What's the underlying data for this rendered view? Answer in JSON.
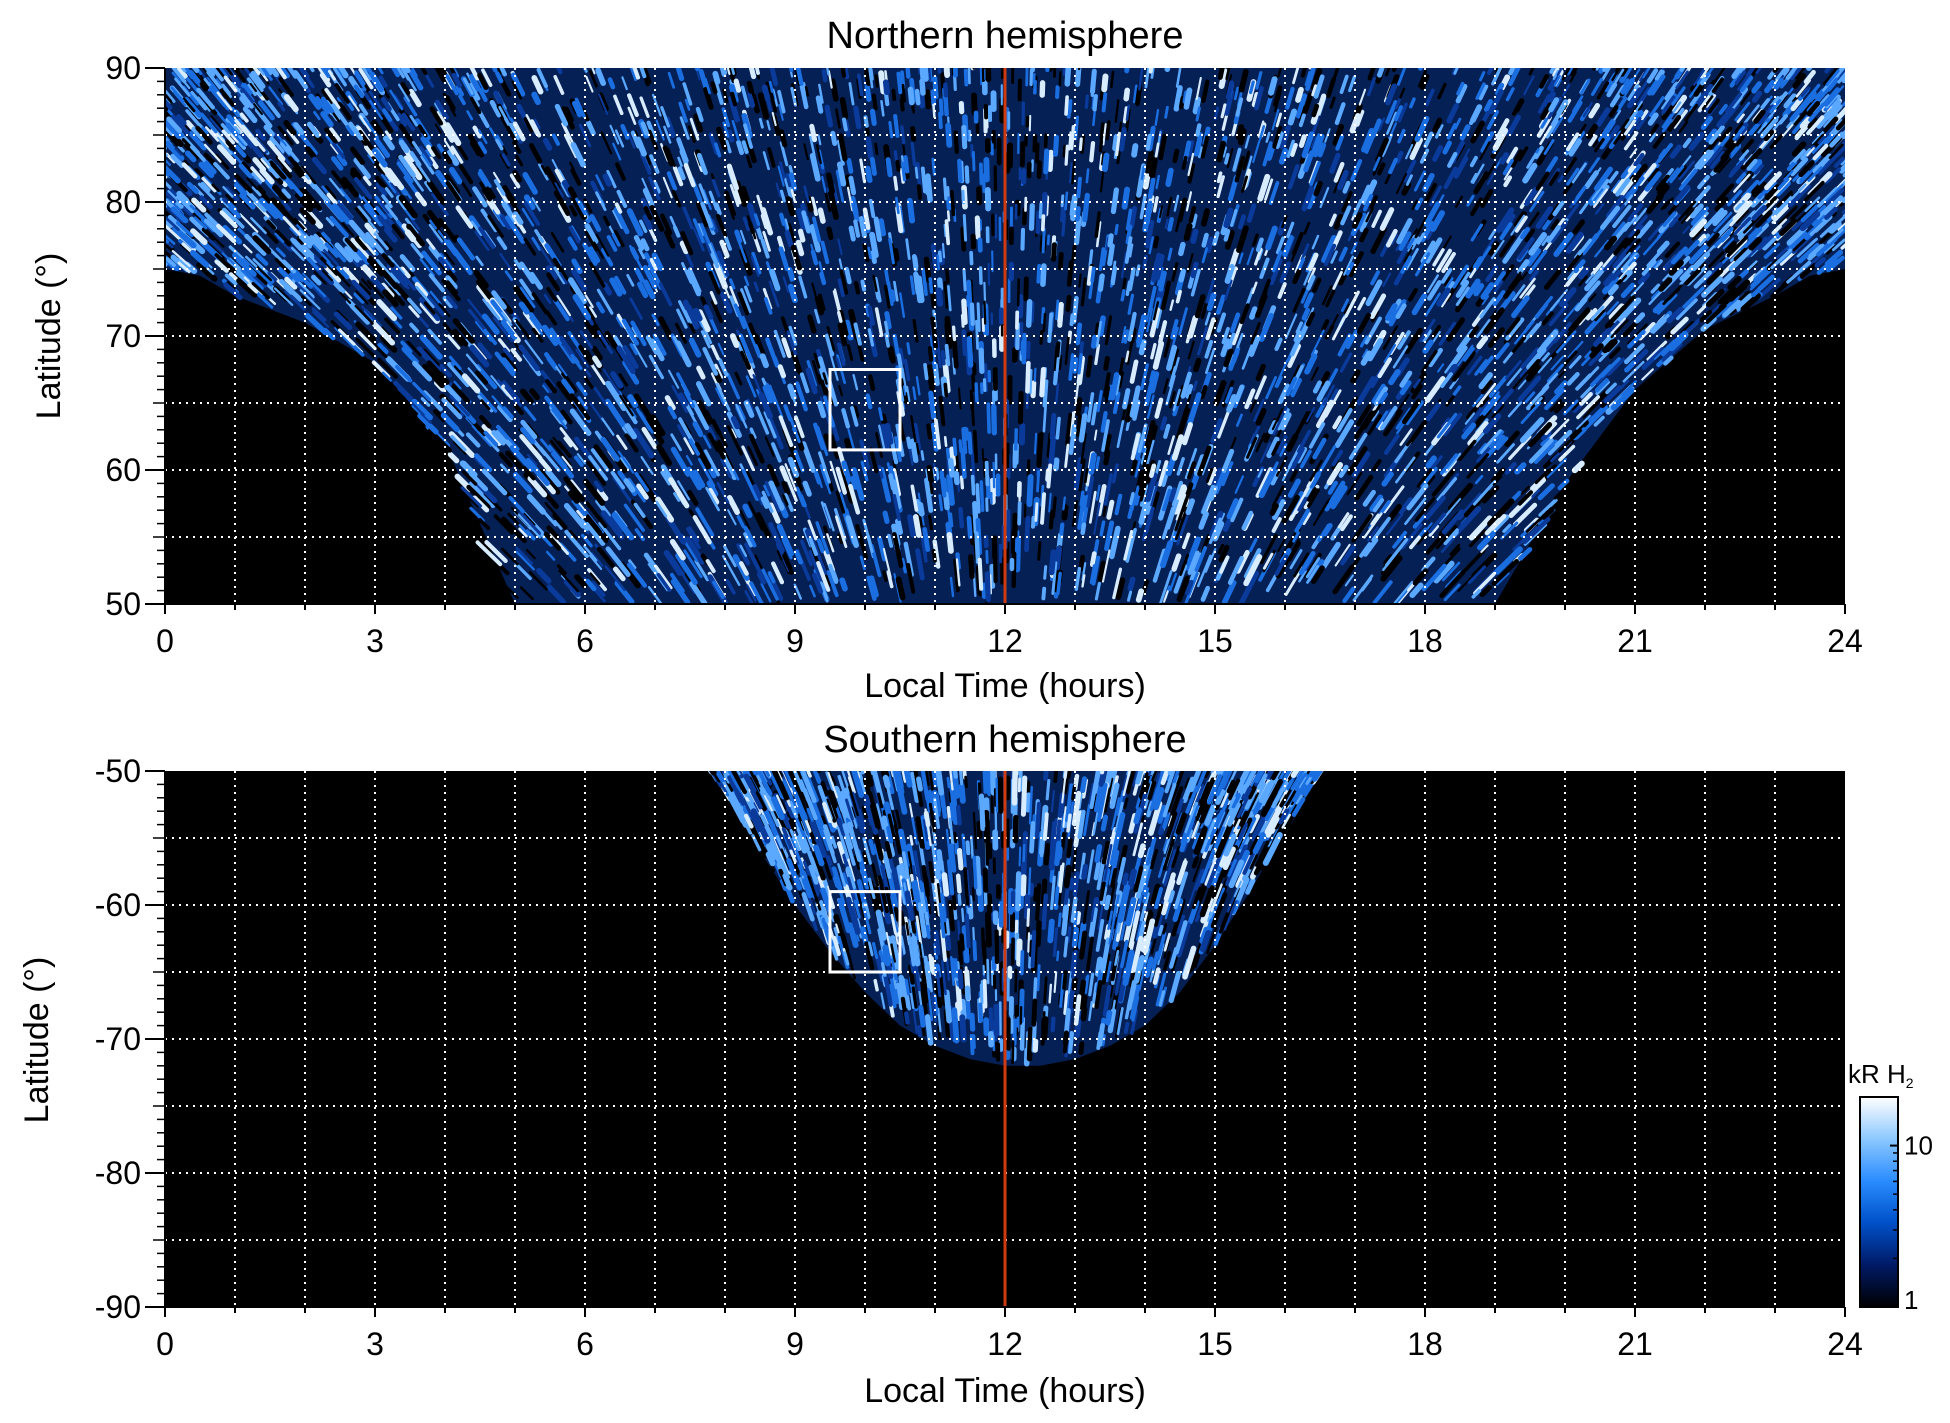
{
  "chart_data": [
    {
      "type": "heatmap",
      "title": "Northern hemisphere",
      "xlabel": "Local Time (hours)",
      "ylabel": "Latitude (°)",
      "xlim": [
        0,
        24
      ],
      "ylim": [
        50,
        90
      ],
      "xticks": [
        "0",
        "3",
        "6",
        "9",
        "12",
        "15",
        "18",
        "21",
        "24"
      ],
      "yticks": [
        "50",
        "60",
        "70",
        "80",
        "90"
      ],
      "grid": true,
      "noon_line_local_time": 12,
      "boundary": {
        "local_time": [
          0,
          0.5,
          1,
          2,
          3,
          4,
          5,
          6,
          7,
          8,
          9,
          10,
          11,
          12,
          13,
          14,
          15,
          16,
          17,
          18,
          19,
          20,
          21,
          22,
          23,
          23.5,
          24
        ],
        "min_latitude": [
          75,
          74.5,
          73,
          71,
          68,
          62,
          50,
          50,
          50,
          50,
          50,
          50,
          50,
          50,
          50,
          50,
          50,
          50,
          50,
          50,
          50,
          59,
          66,
          70.5,
          73,
          74.5,
          75
        ]
      },
      "highlight_box": {
        "local_time": [
          9.5,
          10.5
        ],
        "latitude": [
          61.5,
          67.5
        ]
      }
    },
    {
      "type": "heatmap",
      "title": "Southern hemisphere",
      "xlabel": "Local Time (hours)",
      "ylabel": "Latitude (°)",
      "xlim": [
        0,
        24
      ],
      "ylim": [
        -90,
        -50
      ],
      "xticks": [
        "0",
        "3",
        "6",
        "9",
        "12",
        "15",
        "18",
        "21",
        "24"
      ],
      "yticks": [
        "-50",
        "-60",
        "-70",
        "-80",
        "-90"
      ],
      "grid": true,
      "noon_line_local_time": 12,
      "boundary": {
        "local_time": [
          7.8,
          8,
          8.5,
          9,
          9.5,
          10,
          10.5,
          11,
          11.5,
          12,
          12.5,
          13,
          13.5,
          14,
          14.5,
          15,
          15.5,
          16,
          16.5
        ],
        "min_latitude": [
          -50,
          -51.5,
          -56,
          -60,
          -63.5,
          -66.5,
          -69,
          -70.5,
          -71.5,
          -72,
          -72,
          -71.5,
          -70.5,
          -69,
          -66.5,
          -63,
          -59,
          -54.5,
          -50
        ]
      },
      "highlight_box": {
        "local_time": [
          9.5,
          10.5
        ],
        "latitude": [
          -65,
          -59
        ]
      }
    }
  ],
  "colorbar": {
    "label": "kR H",
    "label_subscript": "2",
    "scale": "log",
    "range": [
      1,
      20
    ],
    "tick_labels": [
      "10",
      "1"
    ],
    "tick_values": [
      10,
      1
    ],
    "colors": [
      "#000000",
      "#001a66",
      "#0050c8",
      "#2a8cff",
      "#8cc8ff",
      "#ffffff"
    ]
  },
  "colors": {
    "background": "#000000",
    "aurora_dark": "#0a3a9a",
    "aurora_mid": "#1a6ee0",
    "aurora_bright": "#5aa8ff",
    "aurora_peak": "#d8ecff",
    "noon_line": "#d03a10",
    "grid": "#ffffff",
    "box": "#ffffff"
  }
}
